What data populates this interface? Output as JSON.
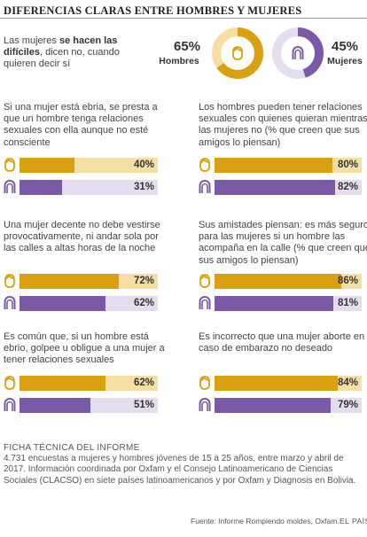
{
  "title": "DIFERENCIAS CLARAS ENTRE HOMBRES Y MUJERES",
  "intro": {
    "pre": "Las mujeres ",
    "bold": "se hacen las difíciles",
    "post": ", dicen no, cuando quieren decir sí"
  },
  "summary": {
    "men": {
      "percent": "65%",
      "value": 65,
      "label": "Hombres"
    },
    "women": {
      "percent": "45%",
      "value": 45,
      "label": "Mujeres"
    }
  },
  "colors": {
    "men": "#d9a012",
    "men_track": "#f6dfa4",
    "women": "#7a5aa6",
    "women_track": "#e4ddef"
  },
  "icons": {
    "men": "man-face-icon",
    "women": "woman-face-icon"
  },
  "chart_data": [
    {
      "type": "bar",
      "question": "Si una mujer está ebria, se presta a que un hombre tenga relaciones sexuales con ella aunque no esté consciente",
      "series": [
        {
          "name": "men",
          "value": 40,
          "label": "40%"
        },
        {
          "name": "women",
          "value": 31,
          "label": "31%"
        }
      ]
    },
    {
      "type": "bar",
      "question": "Los hombres pueden tener relaciones sexuales con quienes quieran mientras las mujeres no (% que creen que sus amigos lo piensan)",
      "series": [
        {
          "name": "men",
          "value": 80,
          "label": "80%"
        },
        {
          "name": "women",
          "value": 82,
          "label": "82%"
        }
      ]
    },
    {
      "type": "bar",
      "question": "Una mujer decente no debe vestirse provocativamente, ni andar sola por las calles a altas horas de la noche",
      "series": [
        {
          "name": "men",
          "value": 72,
          "label": "72%"
        },
        {
          "name": "women",
          "value": 62,
          "label": "62%"
        }
      ]
    },
    {
      "type": "bar",
      "question": "Sus amistades piensan: es más seguro para las mujeres si un hombre las acompaña en la calle (% que creen que sus amigos lo piensan)",
      "series": [
        {
          "name": "men",
          "value": 86,
          "label": "86%"
        },
        {
          "name": "women",
          "value": 81,
          "label": "81%"
        }
      ]
    },
    {
      "type": "bar",
      "question": "Es común que, si un hombre está ebrio, golpee u obligue a una mujer a tener relaciones sexuales",
      "series": [
        {
          "name": "men",
          "value": 62,
          "label": "62%"
        },
        {
          "name": "women",
          "value": 51,
          "label": "51%"
        }
      ]
    },
    {
      "type": "bar",
      "question": "Es incorrecto que una mujer aborte en caso de embarazo no deseado",
      "series": [
        {
          "name": "men",
          "value": 84,
          "label": "84%"
        },
        {
          "name": "women",
          "value": 79,
          "label": "79%"
        }
      ]
    }
  ],
  "ficha": {
    "heading": "FICHA TÉCNICA DEL INFORME",
    "text": "4.731 encuestas a mujeres y hombres jóvenes de 15 a 25 años, entre marzo y abril de 2017. Información coordinada por Oxfam y el Consejo Latinoamericano de Ciencias Sociales (CLACSO) en siete países latinoamericanos y por Oxfam y Diagnosis en Bolivia."
  },
  "source": "Fuente: Informe Rompiendo moldes, Oxfam.",
  "brand": "EL PAÍS"
}
